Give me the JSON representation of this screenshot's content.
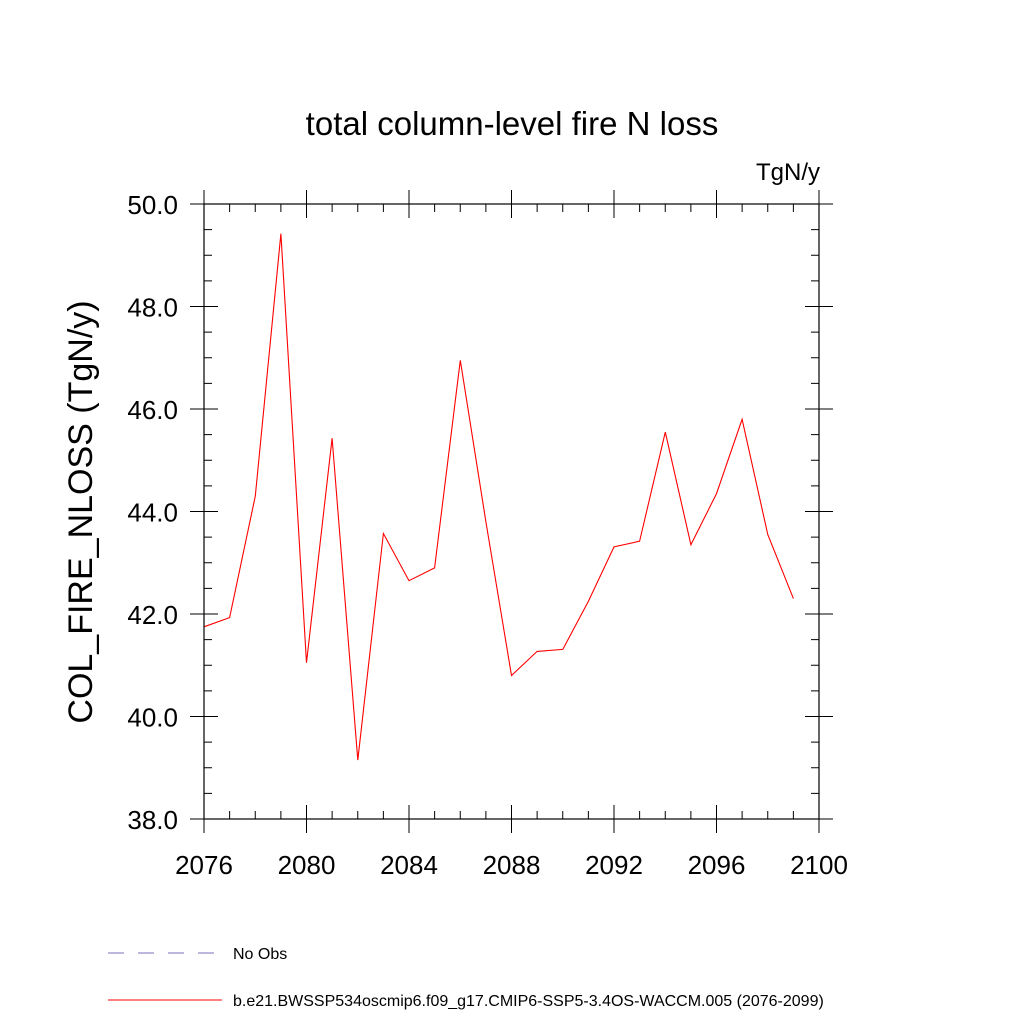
{
  "chart_data": {
    "type": "line",
    "title": "total column-level fire N loss",
    "units": "TgN/y",
    "ylabel": "COL_FIRE_NLOSS  (TgN/y)",
    "xlabel": "",
    "xlim": [
      2076,
      2100
    ],
    "ylim": [
      38.0,
      50.0
    ],
    "x_ticks": [
      2076,
      2080,
      2084,
      2088,
      2092,
      2096,
      2100
    ],
    "x_tick_labels": [
      "2076",
      "2080",
      "2084",
      "2088",
      "2092",
      "2096",
      "2100"
    ],
    "y_ticks": [
      38.0,
      40.0,
      42.0,
      44.0,
      46.0,
      48.0,
      50.0
    ],
    "y_tick_labels": [
      "38.0",
      "40.0",
      "42.0",
      "44.0",
      "46.0",
      "48.0",
      "50.0"
    ],
    "grid": false,
    "legend_position": "bottom",
    "series": [
      {
        "name": "b.e21.BWSSP534oscmip6.f09_g17.CMIP6-SSP5-3.4OS-WACCM.005 (2076-2099)",
        "color": "#ff0000",
        "style": "solid",
        "x": [
          2076,
          2077,
          2078,
          2079,
          2080,
          2081,
          2082,
          2083,
          2084,
          2085,
          2086,
          2087,
          2088,
          2089,
          2090,
          2091,
          2092,
          2093,
          2094,
          2095,
          2096,
          2097,
          2098,
          2099
        ],
        "values": [
          41.75,
          41.93,
          44.3,
          49.42,
          41.05,
          45.43,
          39.15,
          43.57,
          42.65,
          42.9,
          46.95,
          43.8,
          40.8,
          41.27,
          41.31,
          42.25,
          43.31,
          43.42,
          45.55,
          43.35,
          44.35,
          45.8,
          43.55,
          42.3
        ]
      }
    ],
    "legend": [
      {
        "label": "No Obs",
        "color": "#7a6fb8",
        "style": "dashed"
      },
      {
        "label": "b.e21.BWSSP534oscmip6.f09_g17.CMIP6-SSP5-3.4OS-WACCM.005 (2076-2099)",
        "color": "#ff0000",
        "style": "solid"
      }
    ]
  }
}
